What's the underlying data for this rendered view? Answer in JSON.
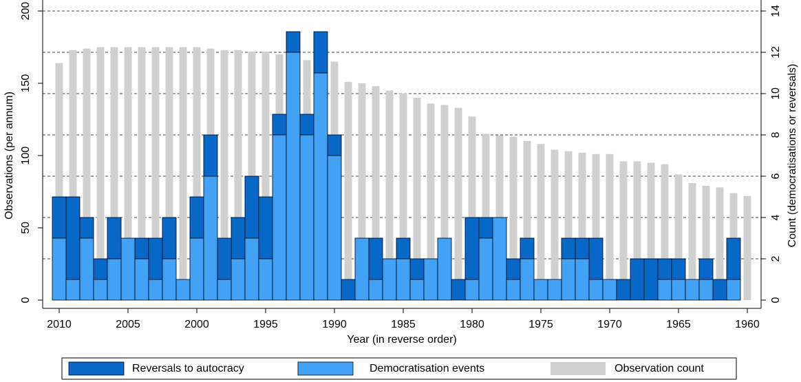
{
  "chart_data": {
    "type": "bar",
    "x_label": "Year (in reverse order)",
    "y_label": "Observations (per annum)",
    "y2_label": "Count (democratisations or reversals)",
    "x": [
      2010,
      2009,
      2008,
      2007,
      2006,
      2005,
      2004,
      2003,
      2002,
      2001,
      2000,
      1999,
      1998,
      1997,
      1996,
      1995,
      1994,
      1993,
      1992,
      1991,
      1990,
      1989,
      1988,
      1987,
      1986,
      1985,
      1984,
      1983,
      1982,
      1981,
      1980,
      1979,
      1978,
      1977,
      1976,
      1975,
      1974,
      1973,
      1972,
      1971,
      1970,
      1969,
      1968,
      1967,
      1966,
      1965,
      1964,
      1963,
      1962,
      1961,
      1960
    ],
    "xlim": [
      2011.2,
      1959
    ],
    "xticks": [
      2010,
      2005,
      2000,
      1995,
      1990,
      1985,
      1980,
      1975,
      1970,
      1965,
      1960
    ],
    "ylim": [
      0,
      200
    ],
    "yticks": [
      0,
      50,
      100,
      150,
      200
    ],
    "y2lim": [
      0,
      14
    ],
    "y2ticks": [
      0,
      2,
      4,
      6,
      8,
      10,
      12,
      14
    ],
    "grid": "y2",
    "series": [
      {
        "name": "Reversals to autocracy",
        "color": "#0868c8",
        "axis": "y2",
        "stack_on": "Democratisation events",
        "values": [
          2,
          4,
          1,
          1,
          2,
          0,
          1,
          2,
          2,
          0,
          2,
          2,
          2,
          2,
          3,
          3,
          1,
          1,
          1,
          2,
          1,
          1,
          0,
          2,
          0,
          1,
          1,
          0,
          0,
          1,
          3,
          1,
          0,
          1,
          1,
          0,
          0,
          1,
          1,
          2,
          0,
          1,
          2,
          2,
          1,
          1,
          0,
          1,
          1,
          2,
          0
        ]
      },
      {
        "name": "Democratisation events",
        "color": "#43a2f5",
        "axis": "y2",
        "values": [
          3,
          1,
          3,
          1,
          2,
          3,
          2,
          1,
          2,
          1,
          3,
          6,
          1,
          2,
          3,
          2,
          8,
          12,
          8,
          11,
          7,
          0,
          3,
          1,
          2,
          2,
          1,
          2,
          3,
          0,
          1,
          3,
          4,
          1,
          2,
          1,
          1,
          2,
          2,
          1,
          1,
          0,
          0,
          0,
          1,
          1,
          1,
          1,
          0,
          1,
          0
        ]
      },
      {
        "name": "Observation count",
        "color": "#d0d0d0",
        "axis": "y",
        "values": [
          164,
          173,
          174,
          175,
          175,
          175,
          175,
          175,
          175,
          175,
          175,
          174,
          173,
          173,
          172,
          172,
          170,
          172,
          166,
          166,
          165,
          151,
          150,
          148,
          145,
          143,
          140,
          136,
          135,
          133,
          127,
          115,
          114,
          113,
          110,
          108,
          104,
          103,
          102,
          101,
          101,
          96,
          96,
          95,
          94,
          87,
          81,
          79,
          78,
          74,
          72
        ]
      }
    ]
  }
}
